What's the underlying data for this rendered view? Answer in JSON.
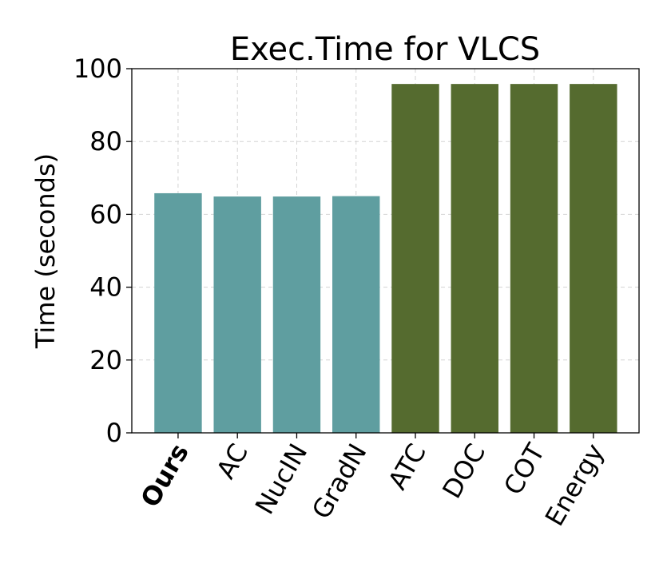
{
  "chart_data": {
    "type": "bar",
    "title": "Exec.Time for VLCS",
    "ylabel": "Time (seconds)",
    "xlabel": "",
    "ylim": [
      0,
      100
    ],
    "yticks": [
      0,
      20,
      40,
      60,
      80,
      100
    ],
    "grid": true,
    "categories": [
      "Ours",
      "AC",
      "NucIN",
      "GradN",
      "ATC",
      "DOC",
      "COT",
      "Energy"
    ],
    "bold_categories": [
      "Ours"
    ],
    "values": [
      65.8,
      64.9,
      64.9,
      65.0,
      95.8,
      95.8,
      95.8,
      95.8
    ],
    "colors": [
      "#5f9ea0",
      "#5f9ea0",
      "#5f9ea0",
      "#5f9ea0",
      "#556b2f",
      "#556b2f",
      "#556b2f",
      "#556b2f"
    ]
  }
}
